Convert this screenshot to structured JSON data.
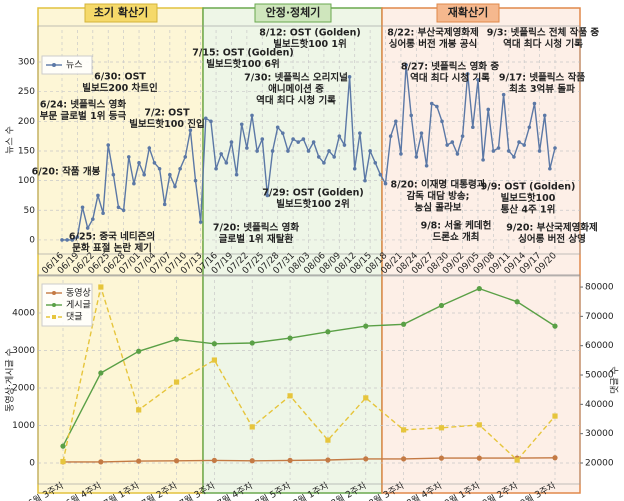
{
  "phases": [
    "초기 확산기",
    "안정·정체기",
    "재확산기"
  ],
  "chart_data": [
    {
      "type": "line",
      "ylabel": "뉴스 수",
      "categories": [
        "06/16",
        null,
        null,
        "06/19",
        null,
        null,
        "06/22",
        null,
        null,
        "06/25",
        null,
        null,
        "06/28",
        null,
        null,
        "07/01",
        null,
        null,
        "07/04",
        null,
        null,
        "07/07",
        null,
        null,
        "07/10",
        null,
        null,
        "07/13",
        null,
        null,
        "07/16",
        null,
        null,
        "07/19",
        null,
        null,
        "07/22",
        null,
        null,
        "07/25",
        null,
        null,
        "07/28",
        null,
        null,
        "07/31",
        null,
        null,
        "08/03",
        null,
        null,
        "08/06",
        null,
        null,
        "08/09",
        null,
        null,
        "08/12",
        null,
        null,
        "08/15",
        null,
        null,
        "08/18",
        null,
        null,
        "08/21",
        null,
        null,
        "08/24",
        null,
        null,
        "08/27",
        null,
        null,
        "08/30",
        null,
        null,
        "09/02",
        null,
        null,
        "09/05",
        null,
        null,
        "09/08",
        null,
        null,
        "09/11",
        null,
        null,
        "09/14",
        null,
        null,
        "09/17",
        null,
        null,
        "09/20"
      ],
      "series": [
        {
          "name": "뉴스",
          "color": "#5b78a6",
          "marker": "circle",
          "linestyle": "solid",
          "values": [
            0,
            0,
            0,
            5,
            55,
            20,
            35,
            75,
            45,
            160,
            110,
            55,
            50,
            140,
            95,
            130,
            110,
            155,
            130,
            120,
            60,
            110,
            90,
            120,
            140,
            185,
            100,
            30,
            205,
            200,
            120,
            145,
            130,
            165,
            110,
            195,
            155,
            210,
            150,
            170,
            75,
            150,
            190,
            180,
            150,
            170,
            165,
            170,
            150,
            165,
            140,
            130,
            150,
            140,
            175,
            160,
            275,
            120,
            180,
            100,
            150,
            130,
            110,
            95,
            175,
            200,
            145,
            295,
            210,
            140,
            180,
            125,
            230,
            225,
            200,
            160,
            165,
            145,
            175,
            280,
            190,
            270,
            135,
            220,
            150,
            155,
            245,
            150,
            140,
            165,
            160,
            190,
            230,
            150,
            210,
            120,
            155
          ]
        }
      ],
      "ylim": [
        -17,
        354
      ],
      "yticks": [
        0,
        50,
        100,
        150,
        200,
        250,
        300
      ],
      "grid": true,
      "legend": "upper left",
      "annotations": [
        [
          "6/20: 작품 개봉"
        ],
        [
          "6/24: 넷플릭스 영화",
          "부문 글로벌 1위 등극"
        ],
        [
          "6/30: OST",
          "빌보드200 차트인"
        ],
        [
          "7/2: OST",
          "빌보드핫100 진입"
        ],
        [
          "6/25: 중국 네티즌의",
          "문화 표절 논란 제기"
        ],
        [
          "7/15: OST (Golden)",
          "빌보드핫100 6위"
        ],
        [
          "8/12: OST (Golden)",
          "빌보드핫100 1위"
        ],
        [
          "7/30: 넷플릭스 오리지널",
          "애니메이션 중",
          "역대 최다 시청 기록"
        ],
        [
          "7/29: OST (Golden)",
          "빌보드핫100 2위"
        ],
        [
          "7/20: 넷플릭스 영화",
          "글로벌 1위 재탈환"
        ],
        [
          "8/22: 부산국제영화제",
          "싱어롱 버전 개봉 공식"
        ],
        [
          "9/3: 넷플릭스 전체 작품 중",
          "역대 최다 시청 기록"
        ],
        [
          "8/27: 넷플릭스 영화 중",
          "역대 최다 시청 기록"
        ],
        [
          "9/17: 넷플릭스 작품",
          "최초 3억뷰 돌파"
        ],
        [
          "8/20: 이재명 대통령과",
          "감독 대담 방송;",
          "농심 콜라보"
        ],
        [
          "9/9: OST (Golden)",
          "빌보드핫100",
          "통산 4주 1위"
        ],
        [
          "9/8: 서울 케데헌",
          "드론쇼 개최"
        ],
        [
          "9/20: 부산국제영화제",
          "싱어롱 버전 상영"
        ]
      ]
    },
    {
      "type": "line",
      "ylabel": "동영상·게시글 수",
      "y2label": "댓글 수",
      "categories": [
        "6월 3주차",
        "6월 4주차",
        "7월 1주차",
        "7월 2주차",
        "7월 3주차",
        "7월 4주차",
        "7월 5주차",
        "8월 1주차",
        "8월 2주차",
        "8월 3주차",
        "8월 4주차",
        "9월 1주차",
        "9월 2주차",
        "9월 3주차"
      ],
      "series": [
        {
          "name": "동영상",
          "color": "#c47a44",
          "marker": "circle",
          "linestyle": "solid",
          "values": [
            30,
            30,
            50,
            60,
            70,
            60,
            70,
            80,
            110,
            110,
            130,
            130,
            130,
            140
          ]
        },
        {
          "name": "게시글",
          "color": "#5aa046",
          "marker": "circle",
          "linestyle": "solid",
          "values": [
            450,
            2400,
            2980,
            3300,
            3180,
            3200,
            3330,
            3500,
            3650,
            3700,
            4200,
            4650,
            4300,
            3650
          ]
        },
        {
          "name": "댓글",
          "color": "#e6c53c",
          "marker": "square",
          "linestyle": "dashed",
          "axis": "y2",
          "values": [
            20500,
            80000,
            38100,
            47600,
            55100,
            32300,
            42900,
            27800,
            42200,
            31300,
            32000,
            33000,
            21000,
            36000
          ]
        }
      ],
      "ylim": [
        -453,
        4880
      ],
      "yticks": [
        0,
        1000,
        2000,
        3000,
        4000
      ],
      "y2lim": [
        14200,
        82400
      ],
      "y2ticks": [
        20000,
        30000,
        40000,
        50000,
        60000,
        70000,
        80000
      ],
      "grid": true,
      "legend": "upper left"
    }
  ]
}
